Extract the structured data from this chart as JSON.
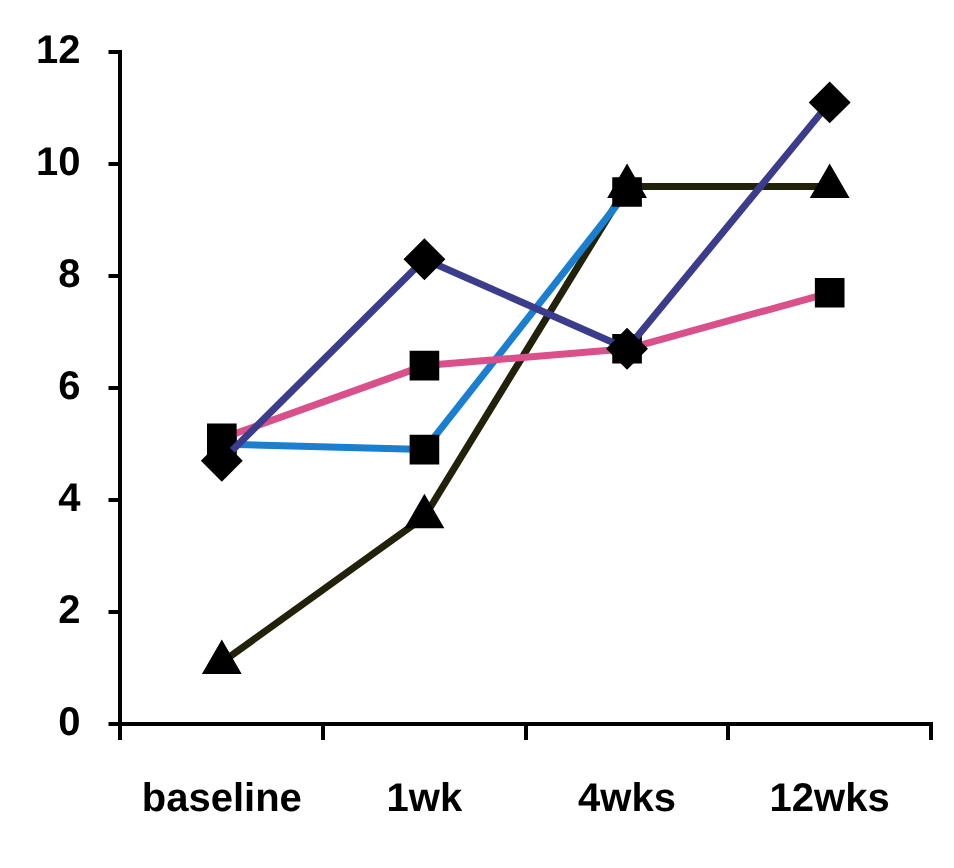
{
  "chart_data": {
    "type": "line",
    "categories": [
      "baseline",
      "1wk",
      "4wks",
      "12wks"
    ],
    "series": [
      {
        "color": "#3c3c8c",
        "values": [
          4.7,
          8.3,
          6.7,
          11.1
        ],
        "marker": "diamond"
      },
      {
        "color": "#d9508a",
        "values": [
          5.1,
          6.4,
          6.7,
          7.7
        ],
        "marker": "square"
      },
      {
        "color": "#1a7fd0",
        "values": [
          5.0,
          4.9,
          9.5,
          null
        ],
        "marker": "square"
      },
      {
        "color": "#22220a",
        "values": [
          1.1,
          3.7,
          9.6,
          9.6
        ],
        "marker": "triangle"
      }
    ],
    "ylim": [
      0,
      12
    ],
    "yticks": [
      0,
      2,
      4,
      6,
      8,
      10,
      12
    ],
    "grid": false,
    "legend": false,
    "line_style": "solid"
  }
}
